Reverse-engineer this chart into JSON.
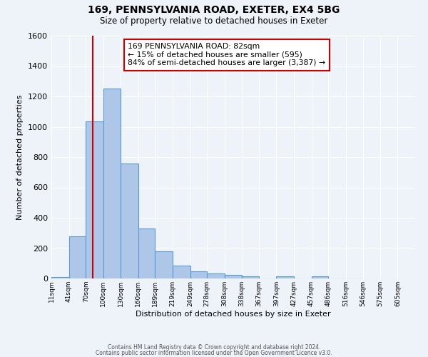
{
  "title": "169, PENNSYLVANIA ROAD, EXETER, EX4 5BG",
  "subtitle": "Size of property relative to detached houses in Exeter",
  "xlabel": "Distribution of detached houses by size in Exeter",
  "ylabel": "Number of detached properties",
  "bar_values": [
    10,
    280,
    1035,
    1250,
    760,
    330,
    180,
    85,
    48,
    35,
    22,
    15,
    0,
    12,
    0,
    15,
    0,
    0
  ],
  "bin_edges": [
    11,
    41,
    70,
    100,
    130,
    160,
    189,
    219,
    249,
    278,
    308,
    338,
    367,
    397,
    427,
    457,
    486,
    516,
    546
  ],
  "tick_labels": [
    "11sqm",
    "41sqm",
    "70sqm",
    "100sqm",
    "130sqm",
    "160sqm",
    "189sqm",
    "219sqm",
    "249sqm",
    "278sqm",
    "308sqm",
    "338sqm",
    "367sqm",
    "397sqm",
    "427sqm",
    "457sqm",
    "486sqm",
    "516sqm",
    "546sqm",
    "575sqm",
    "605sqm"
  ],
  "bar_color": "#aec6e8",
  "bar_edge_color": "#5b9bd5",
  "ylim": [
    0,
    1600
  ],
  "yticks": [
    0,
    200,
    400,
    600,
    800,
    1000,
    1200,
    1400,
    1600
  ],
  "vline_x": 82,
  "annotation_title": "169 PENNSYLVANIA ROAD: 82sqm",
  "annotation_line1": "← 15% of detached houses are smaller (595)",
  "annotation_line2": "84% of semi-detached houses are larger (3,387) →",
  "annotation_box_color": "#ffffff",
  "annotation_box_edge": "#cc0000",
  "footer_line1": "Contains HM Land Registry data © Crown copyright and database right 2024.",
  "footer_line2": "Contains public sector information licensed under the Open Government Licence v3.0.",
  "background_color": "#eef2f9",
  "grid_color": "#ffffff",
  "vline_color": "#cc0000",
  "xlim_left": 11,
  "xlim_right": 635
}
